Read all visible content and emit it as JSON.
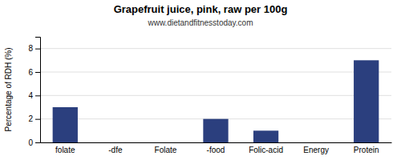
{
  "chart_data": {
    "type": "bar",
    "title": "Grapefruit juice, pink, raw per 100g",
    "subtitle": "www.dietandfitnesstoday.com",
    "categories": [
      "folate",
      "-dfe",
      "Folate",
      "-food",
      "Folic-acid",
      "Energy",
      "Protein"
    ],
    "values": [
      3.0,
      0.0,
      0.0,
      2.0,
      1.0,
      0.0,
      7.0
    ],
    "color": "#2b3f7e",
    "ylabel": "Percentage of RDH (%)",
    "ylim": [
      0,
      9
    ],
    "yticks": [
      0,
      2,
      4,
      6,
      8
    ],
    "grid": true
  }
}
